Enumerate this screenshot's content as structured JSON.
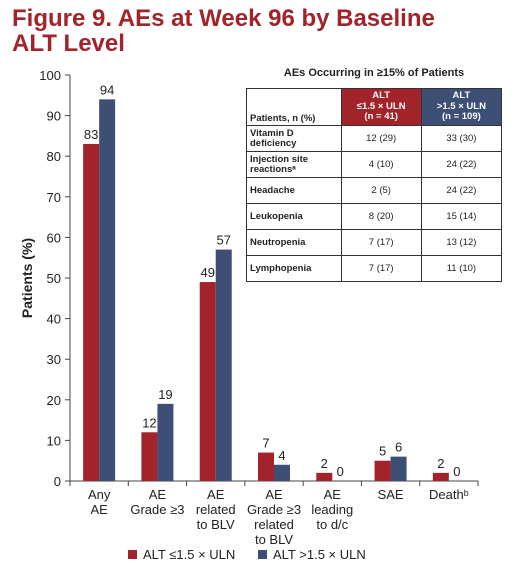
{
  "chart_data": {
    "type": "bar",
    "title": "Figure 9. AEs at Week 96 by Baseline ALT Level",
    "y_label": "Patients (%)",
    "categories": [
      [
        "Any",
        "AE"
      ],
      [
        "AE",
        "Grade ≥3"
      ],
      [
        "AE",
        "related",
        "to BLV"
      ],
      [
        "AE",
        "Grade ≥3",
        "related",
        "to BLV"
      ],
      [
        "AE",
        "leading",
        "to d/c"
      ],
      [
        "SAE"
      ],
      [
        "Deathᵇ"
      ]
    ],
    "series": [
      {
        "name": "ALT ≤1.5 × ULN",
        "color": "#a3232a",
        "values": [
          83,
          12,
          49,
          7,
          2,
          5,
          2
        ]
      },
      {
        "name": "ALT >1.5 × ULN",
        "color": "#3d4f74",
        "values": [
          94,
          19,
          57,
          4,
          0,
          6,
          0
        ]
      }
    ],
    "ylim": [
      0,
      100
    ],
    "yticks": [
      0,
      10,
      20,
      30,
      40,
      50,
      60,
      70,
      80,
      90,
      100
    ],
    "grid": false,
    "legend": "bottom",
    "table": {
      "title": "AEs Occurring in ≥15% of Patients",
      "columns": [
        [
          "Patients, n (%)"
        ],
        [
          "ALT",
          "≤1.5 × ULN",
          "(n = 41)"
        ],
        [
          "ALT",
          ">1.5 × ULN",
          "(n = 109)"
        ]
      ],
      "rows": [
        [
          "Vitamin D deficiency",
          "12 (29)",
          "33 (30)"
        ],
        [
          "Injection site reactionsᵃ",
          "4 (10)",
          "24 (22)"
        ],
        [
          "Headache",
          "2 (5)",
          "24 (22)"
        ],
        [
          "Leukopenia",
          "8 (20)",
          "15 (14)"
        ],
        [
          "Neutropenia",
          "7 (17)",
          "13 (12)"
        ],
        [
          "Lymphopenia",
          "7 (17)",
          "11 (10)"
        ]
      ]
    }
  }
}
